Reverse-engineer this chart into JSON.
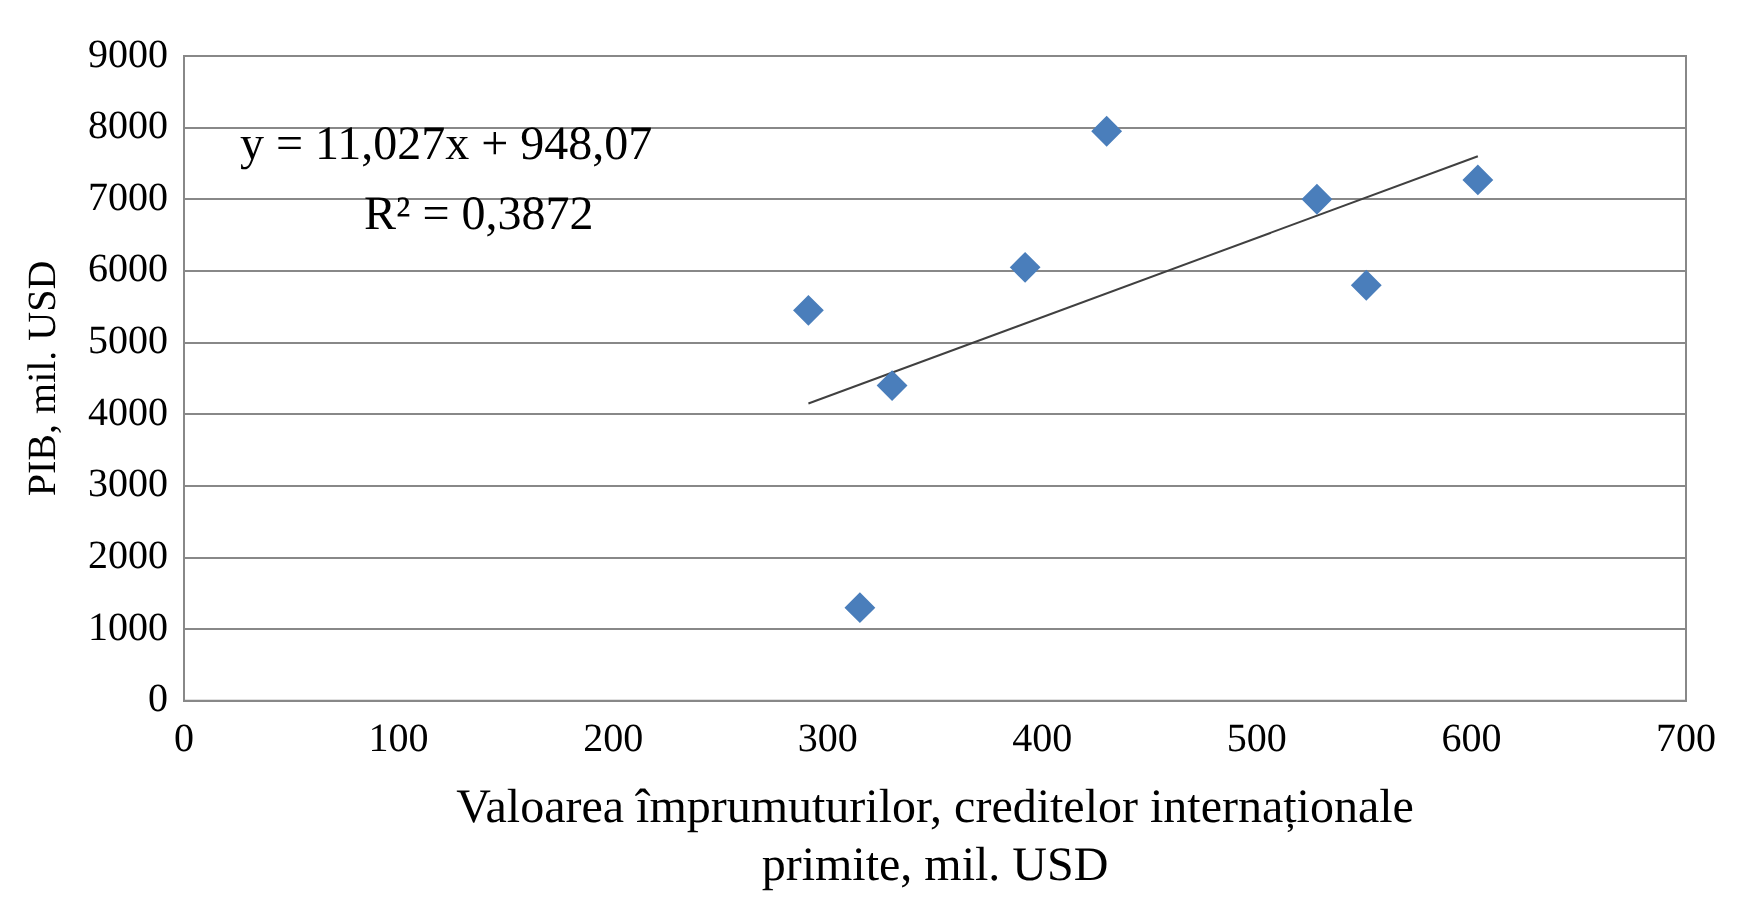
{
  "chart_data": {
    "type": "scatter",
    "xlabel": "Valoarea împrumuturilor, creditelor internaționale primite, mil. USD",
    "ylabel": "PIB, mil. USD",
    "xlim": [
      0,
      700
    ],
    "xticks": [
      0,
      100,
      200,
      300,
      400,
      500,
      600,
      700
    ],
    "ylim": [
      0,
      9000
    ],
    "yticks": [
      0,
      1000,
      2000,
      3000,
      4000,
      5000,
      6000,
      7000,
      8000,
      9000
    ],
    "grid": "y",
    "legend": false,
    "marker": "diamond",
    "series": [
      {
        "type": "scatter",
        "color": "#4a7ebb",
        "x": [
          291,
          315,
          330,
          392,
          430,
          528,
          551,
          603
        ],
        "values": [
          5450,
          1300,
          4400,
          6050,
          7950,
          7000,
          5800,
          7270
        ]
      },
      {
        "type": "line",
        "color": "#404040",
        "marker": "none",
        "line_style": "solid",
        "x": [
          291,
          603
        ],
        "values": [
          4150,
          7600
        ]
      }
    ],
    "annotations": [
      "y = 11,027x + 948,07",
      "R² = 0,3872"
    ]
  }
}
